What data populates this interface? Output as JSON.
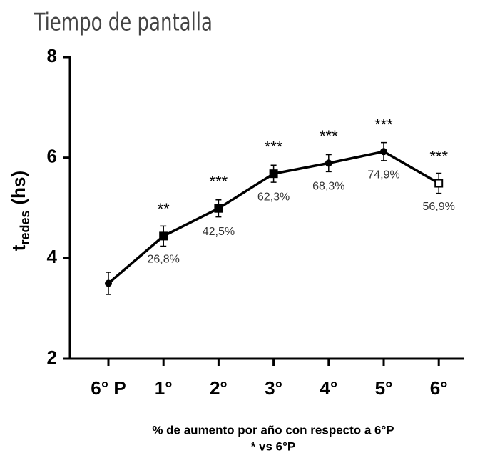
{
  "header": {
    "title": "Tiempo de pantalla"
  },
  "chart_data": {
    "type": "line",
    "y_label": {
      "main": "t",
      "subscript": "redes",
      "unit": "(hs)"
    },
    "caption": [
      "% de aumento por año con respecto a 6°P",
      "* vs 6°P"
    ],
    "categories": [
      "6° P",
      "1°",
      "2°",
      "3°",
      "4°",
      "5°",
      "6°"
    ],
    "series": [
      {
        "color": "#000000",
        "values": [
          3.5,
          4.44,
          4.99,
          5.68,
          5.89,
          6.12,
          5.49
        ],
        "errors": [
          0.22,
          0.2,
          0.17,
          0.17,
          0.17,
          0.18,
          0.2
        ],
        "markers": [
          "circle",
          "square",
          "square",
          "square",
          "circle",
          "circle",
          "open-square"
        ]
      }
    ],
    "significance": [
      null,
      "**",
      "***",
      "***",
      "***",
      "***",
      "***"
    ],
    "annotations": [
      null,
      "26,8%",
      "42,5%",
      "62,3%",
      "68,3%",
      "74,9%",
      "56,9%"
    ],
    "ylim": [
      2,
      8
    ],
    "yticks": [
      2,
      4,
      6,
      8
    ]
  }
}
